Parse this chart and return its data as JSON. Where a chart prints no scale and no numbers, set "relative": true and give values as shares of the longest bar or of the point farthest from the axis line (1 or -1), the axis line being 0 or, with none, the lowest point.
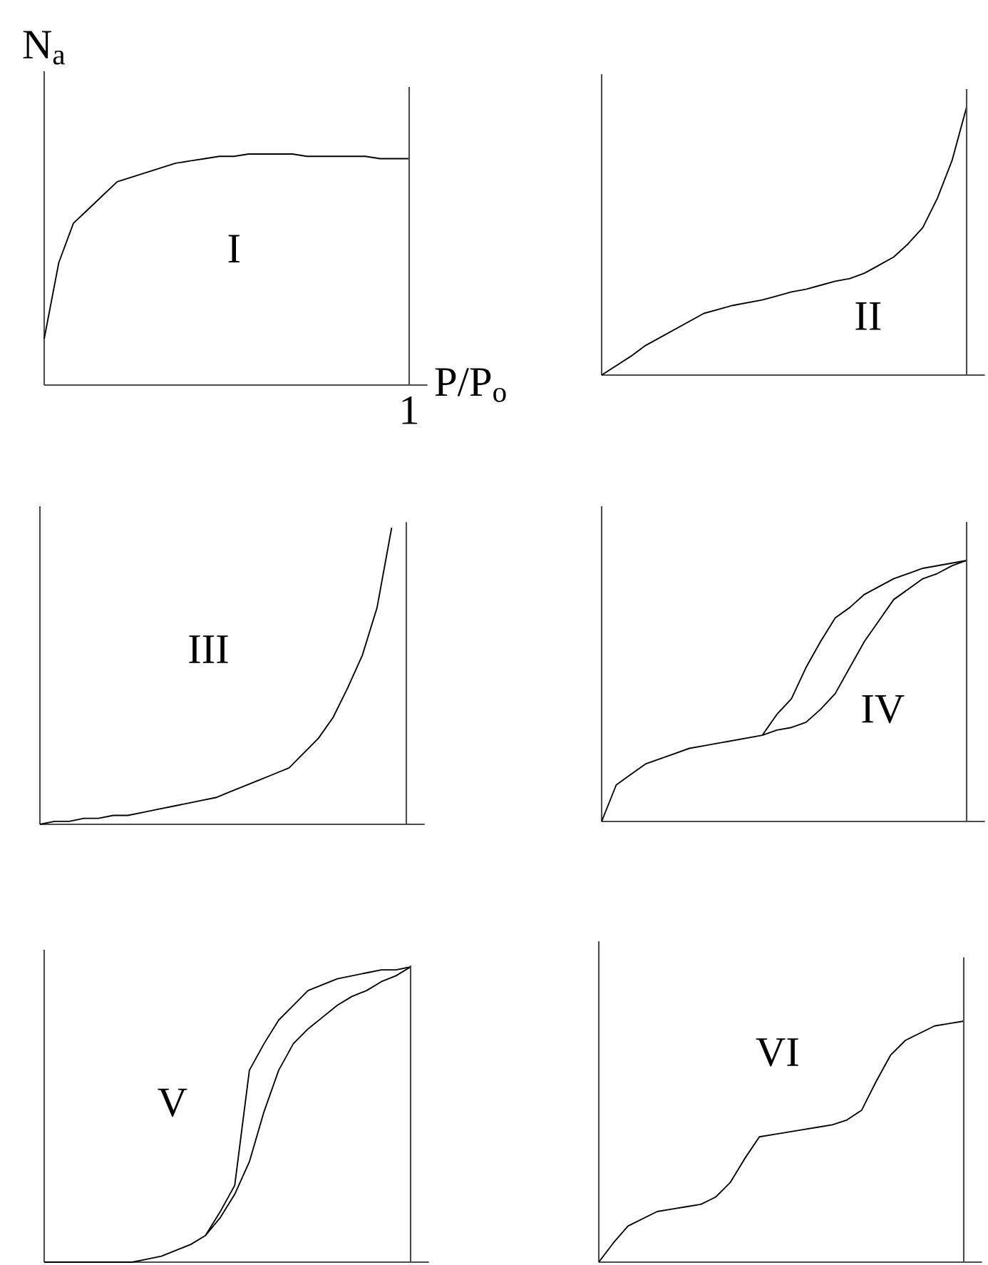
{
  "chart_data": [
    {
      "type": "line",
      "relative": true,
      "xlabel": "P/P$_{o}$",
      "ylabel": "N$_{a}$",
      "annotations": [
        "I",
        "1"
      ],
      "categories": [
        null,
        null,
        null,
        null,
        null,
        null,
        null,
        null,
        null,
        null,
        null,
        null,
        null,
        null,
        null,
        null,
        null,
        null,
        null,
        null,
        null,
        null,
        null,
        null,
        null,
        null
      ],
      "series": [
        {
          "color": "#000000",
          "values": [
            0.2,
            0.53,
            0.7,
            0.76,
            0.82,
            0.88,
            0.9,
            0.92,
            0.94,
            0.96,
            0.97,
            0.98,
            0.99,
            0.99,
            1,
            1,
            1,
            1,
            0.99,
            0.99,
            0.99,
            0.99,
            0.99,
            0.98,
            0.98,
            0.98
          ]
        }
      ]
    },
    {
      "type": "line",
      "relative": true,
      "annotations": [
        "II"
      ],
      "categories": [
        null,
        null,
        null,
        null,
        null,
        null,
        null,
        null,
        null,
        null,
        null,
        null,
        null,
        null,
        null,
        null,
        null,
        null,
        null,
        null,
        null,
        null,
        null,
        null,
        null,
        null
      ],
      "series": [
        {
          "color": "#000000",
          "values": [
            0,
            0.035,
            0.07,
            0.11,
            0.14,
            0.17,
            0.2,
            0.23,
            0.245,
            0.26,
            0.27,
            0.28,
            0.295,
            0.31,
            0.32,
            0.335,
            0.35,
            0.36,
            0.38,
            0.41,
            0.44,
            0.49,
            0.55,
            0.66,
            0.8,
            1
          ]
        }
      ]
    },
    {
      "type": "line",
      "relative": true,
      "annotations": [
        "III"
      ],
      "categories": [
        null,
        null,
        null,
        null,
        null,
        null,
        null,
        null,
        null,
        null,
        null,
        null,
        null,
        null,
        null,
        null,
        null,
        null,
        null,
        null,
        null,
        null,
        null,
        null,
        null,
        null
      ],
      "series": [
        {
          "color": "#000000",
          "values": [
            0,
            0.01,
            0.01,
            0.02,
            0.02,
            0.03,
            0.03,
            0.04,
            0.05,
            0.06,
            0.07,
            0.08,
            0.09,
            0.11,
            0.13,
            0.15,
            0.17,
            0.19,
            0.24,
            0.29,
            0.36,
            0.46,
            0.57,
            0.73,
            1,
            null
          ]
        }
      ]
    },
    {
      "type": "line",
      "relative": true,
      "annotations": [
        "IV"
      ],
      "categories": [
        null,
        null,
        null,
        null,
        null,
        null,
        null,
        null,
        null,
        null,
        null,
        null,
        null,
        null,
        null,
        null,
        null,
        null,
        null,
        null,
        null,
        null,
        null,
        null,
        null,
        null
      ],
      "series": [
        {
          "color": "#000000",
          "values": [
            0,
            0.14,
            0.18,
            0.22,
            0.24,
            0.26,
            0.28,
            0.29,
            0.3,
            0.31,
            0.32,
            0.33,
            0.35,
            0.36,
            0.38,
            0.43,
            0.49,
            0.59,
            0.69,
            0.77,
            0.85,
            0.89,
            0.93,
            0.95,
            0.98,
            1
          ]
        },
        {
          "color": "#000000",
          "values": [
            null,
            null,
            null,
            null,
            null,
            null,
            null,
            null,
            null,
            null,
            null,
            0.33,
            0.41,
            0.47,
            0.59,
            0.69,
            0.78,
            0.82,
            0.87,
            0.9,
            0.93,
            0.95,
            0.97,
            0.98,
            0.99,
            1
          ]
        }
      ]
    },
    {
      "type": "line",
      "relative": true,
      "annotations": [
        "V"
      ],
      "categories": [
        null,
        null,
        null,
        null,
        null,
        null,
        null,
        null,
        null,
        null,
        null,
        null,
        null,
        null,
        null,
        null,
        null,
        null,
        null,
        null,
        null,
        null,
        null,
        null,
        null,
        null
      ],
      "series": [
        {
          "color": "#000000",
          "values": [
            0,
            0,
            0,
            0,
            0,
            0,
            0,
            0.01,
            0.02,
            0.04,
            0.06,
            0.09,
            0.15,
            0.23,
            0.34,
            0.51,
            0.65,
            0.74,
            0.79,
            0.83,
            0.87,
            0.9,
            0.92,
            0.95,
            0.97,
            1
          ]
        },
        {
          "color": "#000000",
          "values": [
            null,
            null,
            null,
            null,
            null,
            null,
            null,
            null,
            null,
            null,
            null,
            0.09,
            0.17,
            0.26,
            0.65,
            0.74,
            0.82,
            0.87,
            0.92,
            0.94,
            0.96,
            0.97,
            0.98,
            0.99,
            0.99,
            1
          ]
        }
      ]
    },
    {
      "type": "line",
      "relative": true,
      "annotations": [
        "VI"
      ],
      "categories": [
        null,
        null,
        null,
        null,
        null,
        null,
        null,
        null,
        null,
        null,
        null,
        null,
        null,
        null,
        null,
        null,
        null,
        null,
        null,
        null,
        null,
        null,
        null,
        null,
        null,
        null
      ],
      "series": [
        {
          "color": "#000000",
          "values": [
            0,
            0.08,
            0.15,
            0.18,
            0.21,
            0.22,
            0.23,
            0.24,
            0.27,
            0.33,
            0.43,
            0.52,
            0.53,
            0.54,
            0.55,
            0.56,
            0.57,
            0.59,
            0.63,
            0.75,
            0.86,
            0.92,
            0.95,
            0.98,
            0.99,
            1
          ]
        }
      ]
    }
  ]
}
